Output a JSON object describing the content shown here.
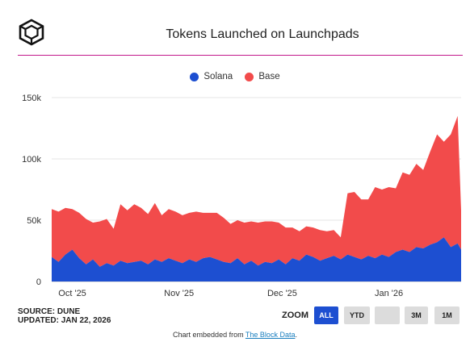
{
  "header": {
    "title": "Tokens Launched on Launchpads"
  },
  "footer": {
    "source": "SOURCE: DUNE",
    "updated": "UPDATED: JAN 22, 2026",
    "embed_prefix": "Chart embedded from ",
    "embed_link": "The Block Data",
    "embed_suffix": "."
  },
  "zoom": {
    "label": "ZOOM",
    "buttons": [
      "ALL",
      "YTD",
      "",
      "3M",
      "1M"
    ],
    "active": "ALL"
  },
  "colors": {
    "solana": "#1d4fd1",
    "base": "#f24b4b",
    "accent_rule": "#c2188b"
  },
  "chart_data": {
    "type": "area",
    "stacked": true,
    "title": "Tokens Launched on Launchpads",
    "xlabel": "",
    "ylabel": "",
    "ylim": [
      0,
      150000
    ],
    "y_ticks": [
      0,
      50000,
      100000,
      150000
    ],
    "y_tick_labels": [
      "0",
      "50k",
      "100k",
      "150k"
    ],
    "x_ticks": [
      "2025-10-01",
      "2025-11-01",
      "2025-12-01",
      "2026-01-01"
    ],
    "x_tick_labels": [
      "Oct '25",
      "Nov '25",
      "Dec '25",
      "Jan '26"
    ],
    "legend_position": "top-center",
    "grid": "horizontal",
    "x": [
      "2025-09-25",
      "2025-09-27",
      "2025-09-29",
      "2025-10-01",
      "2025-10-03",
      "2025-10-05",
      "2025-10-07",
      "2025-10-09",
      "2025-10-11",
      "2025-10-13",
      "2025-10-15",
      "2025-10-17",
      "2025-10-19",
      "2025-10-21",
      "2025-10-23",
      "2025-10-25",
      "2025-10-27",
      "2025-10-29",
      "2025-10-31",
      "2025-11-02",
      "2025-11-04",
      "2025-11-06",
      "2025-11-08",
      "2025-11-10",
      "2025-11-12",
      "2025-11-14",
      "2025-11-16",
      "2025-11-18",
      "2025-11-20",
      "2025-11-22",
      "2025-11-24",
      "2025-11-26",
      "2025-11-28",
      "2025-11-30",
      "2025-12-02",
      "2025-12-04",
      "2025-12-06",
      "2025-12-08",
      "2025-12-10",
      "2025-12-12",
      "2025-12-14",
      "2025-12-16",
      "2025-12-18",
      "2025-12-20",
      "2025-12-22",
      "2025-12-24",
      "2025-12-26",
      "2025-12-28",
      "2025-12-30",
      "2026-01-01",
      "2026-01-03",
      "2026-01-05",
      "2026-01-07",
      "2026-01-09",
      "2026-01-11",
      "2026-01-13",
      "2026-01-15",
      "2026-01-17",
      "2026-01-19",
      "2026-01-21",
      "2026-01-22"
    ],
    "series": [
      {
        "name": "Solana",
        "values": [
          20000,
          16000,
          22000,
          26000,
          19000,
          14000,
          18000,
          12000,
          15000,
          13000,
          17000,
          15000,
          16000,
          17000,
          14000,
          18000,
          16000,
          19000,
          17000,
          15000,
          18000,
          16000,
          19000,
          20000,
          18000,
          16000,
          15000,
          19000,
          14000,
          17000,
          13000,
          16000,
          15000,
          18000,
          14000,
          19000,
          17000,
          22000,
          20000,
          17000,
          19000,
          21000,
          18000,
          22000,
          20000,
          18000,
          21000,
          19000,
          22000,
          20000,
          24000,
          26000,
          24000,
          28000,
          27000,
          30000,
          32000,
          36000,
          28000,
          31000,
          26000
        ]
      },
      {
        "name": "Base",
        "values": [
          39000,
          41000,
          38000,
          33000,
          37000,
          37000,
          30000,
          37000,
          36000,
          30000,
          46000,
          43000,
          47000,
          43000,
          41000,
          46000,
          38000,
          40000,
          40000,
          39000,
          38000,
          41000,
          37000,
          36000,
          38000,
          36000,
          32000,
          31000,
          34000,
          32000,
          35000,
          33000,
          34000,
          30000,
          30000,
          25000,
          24000,
          23000,
          24000,
          25000,
          22000,
          21000,
          18000,
          50000,
          53000,
          49000,
          46000,
          58000,
          53000,
          57000,
          52000,
          63000,
          63000,
          68000,
          64000,
          76000,
          88000,
          78000,
          92000,
          104000,
          32000
        ]
      }
    ]
  }
}
